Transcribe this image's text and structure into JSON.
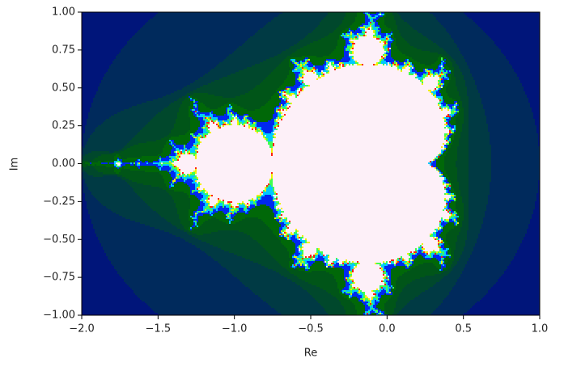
{
  "chart_data": {
    "type": "fractal",
    "xlabel": "Re",
    "ylabel": "Im",
    "xlim": [
      -2,
      1
    ],
    "ylim": [
      -1,
      1
    ],
    "xticks": [
      {
        "value": -2,
        "label": "−2.0"
      },
      {
        "value": -1.5,
        "label": "−1.5"
      },
      {
        "value": -1,
        "label": "−1.0"
      },
      {
        "value": -0.5,
        "label": "−0.5"
      },
      {
        "value": 0,
        "label": "0.0"
      },
      0.5,
      {
        "value": 1,
        "label": "1.0"
      }
    ],
    "yticks": [
      {
        "value": -1,
        "label": "−1.00"
      },
      {
        "value": -0.75,
        "label": "−0.75"
      },
      {
        "value": -0.5,
        "label": "−0.50"
      },
      {
        "value": -0.25,
        "label": "−0.25"
      },
      {
        "value": 0,
        "label": "0.00"
      },
      0.25,
      {
        "value": 0.5,
        "label": "0.50"
      },
      0.75,
      {
        "value": 1,
        "label": "1.00"
      }
    ]
  }
}
